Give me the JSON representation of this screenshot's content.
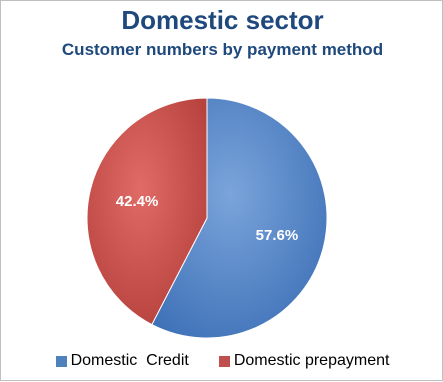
{
  "chart_data": {
    "type": "pie",
    "title": "Domestic sector",
    "subtitle": "Customer numbers by payment method",
    "categories": [
      "Domestic  Credit",
      "Domestic prepayment"
    ],
    "values": [
      57.6,
      42.4
    ],
    "data_labels": [
      "57.6%",
      "42.4%"
    ],
    "colors": [
      "#4f81bd",
      "#c0504d"
    ],
    "legend_position": "bottom"
  }
}
